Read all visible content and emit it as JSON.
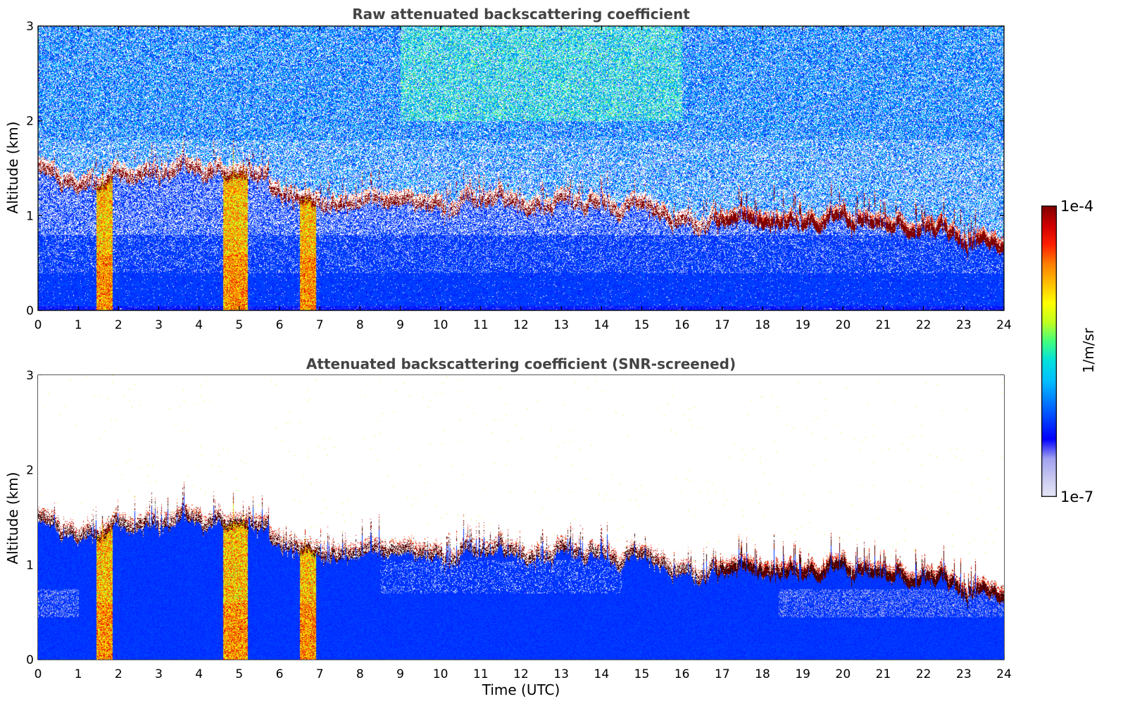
{
  "chart_data": [
    {
      "type": "heatmap",
      "title": "Raw attenuated backscattering coefficient",
      "xlabel": "",
      "ylabel": "Altitude (km)",
      "xlim": [
        0,
        24
      ],
      "ylim": [
        0,
        3
      ],
      "xticks": [
        "0",
        "1",
        "2",
        "3",
        "4",
        "5",
        "6",
        "7",
        "8",
        "9",
        "10",
        "11",
        "12",
        "13",
        "14",
        "15",
        "16",
        "17",
        "18",
        "19",
        "20",
        "21",
        "22",
        "23",
        "24"
      ],
      "yticks": [
        "0",
        "1",
        "2",
        "3"
      ],
      "cloud_base_km": [
        [
          0,
          1.5
        ],
        [
          0.5,
          1.4
        ],
        [
          1,
          1.35
        ],
        [
          2,
          1.4
        ],
        [
          3,
          1.45
        ],
        [
          4,
          1.55
        ],
        [
          5,
          1.4
        ],
        [
          6,
          1.3
        ],
        [
          7,
          1.15
        ],
        [
          8,
          1.15
        ],
        [
          9,
          1.2
        ],
        [
          10,
          1.15
        ],
        [
          11,
          1.15
        ],
        [
          12,
          1.1
        ],
        [
          13,
          1.2
        ],
        [
          14,
          1.1
        ],
        [
          15,
          1.1
        ],
        [
          16,
          0.95
        ],
        [
          17,
          0.95
        ],
        [
          18,
          0.95
        ],
        [
          19,
          0.95
        ],
        [
          20,
          0.95
        ],
        [
          21,
          0.88
        ],
        [
          22,
          0.82
        ],
        [
          23,
          0.76
        ],
        [
          24,
          0.74
        ]
      ],
      "precipitation_bands_utc": [
        [
          1.45,
          1.85
        ],
        [
          4.6,
          5.2
        ],
        [
          6.5,
          6.9
        ]
      ]
    },
    {
      "type": "heatmap",
      "title": "Attenuated backscattering coefficient (SNR-screened)",
      "xlabel": "Time (UTC)",
      "ylabel": "Altitude (km)",
      "xlim": [
        0,
        24
      ],
      "ylim": [
        0,
        3
      ],
      "xticks": [
        "0",
        "1",
        "2",
        "3",
        "4",
        "5",
        "6",
        "7",
        "8",
        "9",
        "10",
        "11",
        "12",
        "13",
        "14",
        "15",
        "16",
        "17",
        "18",
        "19",
        "20",
        "21",
        "22",
        "23",
        "24"
      ],
      "yticks": [
        "0",
        "1",
        "2",
        "3"
      ]
    }
  ],
  "colorbar": {
    "max_label": "1e-4",
    "min_label": "1e-7",
    "unit": "1/m/sr",
    "colors": [
      "#e8e8f8",
      "#c8c8f0",
      "#a0a0f0",
      "#0000ff",
      "#0040ff",
      "#0080ff",
      "#00c0ff",
      "#00e0e0",
      "#40ff80",
      "#c0ff20",
      "#ffff00",
      "#ffc000",
      "#ff8000",
      "#ff2000",
      "#d00000",
      "#800000"
    ]
  }
}
